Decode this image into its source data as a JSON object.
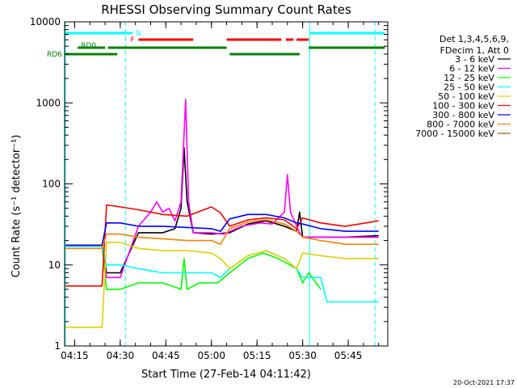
{
  "chart_data": {
    "type": "line",
    "title": "RHESSI Observing Summary Count Rates",
    "xlabel": "Start Time (27-Feb-14 04:11:42)",
    "ylabel": "Count Rate (s⁻¹ detector⁻¹)",
    "x_ticks": [
      "04:15",
      "04:30",
      "04:45",
      "05:00",
      "05:15",
      "05:30",
      "05:45"
    ],
    "x_tick_minutes": [
      15,
      30,
      45,
      60,
      75,
      90,
      105
    ],
    "xlim_minutes": [
      11.7,
      118
    ],
    "y_scale": "log",
    "ylim": [
      1,
      10000
    ],
    "y_ticks": [
      "1",
      "10",
      "100",
      "1000",
      "10000"
    ],
    "grid": false,
    "legend_position": "right",
    "legend_header": [
      "Det 1,3,4,5,6,9,",
      "FDecim 1, Att 0"
    ],
    "series": [
      {
        "name": "3 - 6 keV",
        "color": "#000000",
        "points": [
          [
            12,
            17.5
          ],
          [
            24,
            17.5
          ],
          [
            25.5,
            8
          ],
          [
            30,
            8
          ],
          [
            36,
            25
          ],
          [
            44,
            25
          ],
          [
            48,
            28
          ],
          [
            50,
            50
          ],
          [
            51,
            280
          ],
          [
            52,
            60
          ],
          [
            54,
            25
          ],
          [
            60,
            24
          ],
          [
            66,
            25
          ],
          [
            72,
            32
          ],
          [
            78,
            35
          ],
          [
            84,
            30
          ],
          [
            88,
            26
          ],
          [
            89,
            45
          ],
          [
            90,
            22
          ],
          [
            96,
            22
          ],
          [
            104,
            22
          ],
          [
            115,
            23
          ]
        ]
      },
      {
        "name": "6 - 12 keV",
        "color": "#ff00ff",
        "points": [
          [
            12,
            17
          ],
          [
            24,
            17
          ],
          [
            25.5,
            7
          ],
          [
            30,
            7
          ],
          [
            36,
            30
          ],
          [
            40,
            45
          ],
          [
            42,
            60
          ],
          [
            44,
            45
          ],
          [
            46,
            50
          ],
          [
            48,
            35
          ],
          [
            50,
            60
          ],
          [
            51.5,
            1100
          ],
          [
            52.5,
            60
          ],
          [
            54,
            25
          ],
          [
            60,
            25
          ],
          [
            64,
            24
          ],
          [
            70,
            30
          ],
          [
            76,
            33
          ],
          [
            80,
            32
          ],
          [
            84,
            45
          ],
          [
            85,
            130
          ],
          [
            86,
            45
          ],
          [
            89,
            25
          ],
          [
            90,
            22
          ],
          [
            100,
            22
          ],
          [
            115,
            22
          ]
        ]
      },
      {
        "name": "12 - 25 keV",
        "color": "#00ff00",
        "points": [
          [
            12,
            17
          ],
          [
            24,
            17
          ],
          [
            25.5,
            5
          ],
          [
            30,
            5
          ],
          [
            36,
            6
          ],
          [
            44,
            6
          ],
          [
            50,
            5
          ],
          [
            51,
            12
          ],
          [
            52,
            5
          ],
          [
            56,
            6
          ],
          [
            62,
            6
          ],
          [
            66,
            8
          ],
          [
            72,
            12
          ],
          [
            77,
            14
          ],
          [
            82,
            12
          ],
          [
            88,
            9
          ],
          [
            90,
            6
          ],
          [
            92,
            8
          ],
          [
            96,
            5
          ]
        ]
      },
      {
        "name": "25 - 50 keV",
        "color": "#00ffff",
        "points": [
          [
            12,
            17
          ],
          [
            24,
            17
          ],
          [
            25.5,
            10
          ],
          [
            30,
            10
          ],
          [
            36,
            9
          ],
          [
            44,
            8
          ],
          [
            52,
            8
          ],
          [
            60,
            8
          ],
          [
            63,
            7
          ],
          [
            66,
            9
          ],
          [
            72,
            13
          ],
          [
            78,
            15
          ],
          [
            84,
            12
          ],
          [
            88,
            9
          ],
          [
            90,
            7
          ],
          [
            96,
            7
          ],
          [
            98,
            3.5
          ],
          [
            115,
            3.5
          ]
        ]
      },
      {
        "name": "50 - 100 keV",
        "color": "#e0d000",
        "points": [
          [
            12,
            1.7
          ],
          [
            24,
            1.7
          ],
          [
            25.5,
            19
          ],
          [
            30,
            19
          ],
          [
            36,
            16
          ],
          [
            44,
            15
          ],
          [
            52,
            15
          ],
          [
            60,
            14
          ],
          [
            63,
            12
          ],
          [
            66,
            9
          ],
          [
            72,
            13
          ],
          [
            78,
            15
          ],
          [
            84,
            12
          ],
          [
            88,
            9
          ],
          [
            90,
            14
          ],
          [
            96,
            13
          ],
          [
            104,
            12
          ],
          [
            115,
            12
          ]
        ]
      },
      {
        "name": "100 - 300 keV",
        "color": "#ff0000",
        "points": [
          [
            12,
            5.5
          ],
          [
            24,
            5.5
          ],
          [
            25.5,
            55
          ],
          [
            30,
            52
          ],
          [
            36,
            48
          ],
          [
            44,
            42
          ],
          [
            52,
            40
          ],
          [
            60,
            52
          ],
          [
            63,
            44
          ],
          [
            66,
            30
          ],
          [
            72,
            36
          ],
          [
            78,
            38
          ],
          [
            84,
            36
          ],
          [
            88,
            28
          ],
          [
            90,
            38
          ],
          [
            96,
            33
          ],
          [
            104,
            30
          ],
          [
            115,
            35
          ]
        ]
      },
      {
        "name": "300 - 800 keV",
        "color": "#0000ff",
        "points": [
          [
            12,
            17.5
          ],
          [
            24,
            17.5
          ],
          [
            25.5,
            33
          ],
          [
            30,
            33
          ],
          [
            36,
            30
          ],
          [
            44,
            30
          ],
          [
            52,
            29
          ],
          [
            60,
            28
          ],
          [
            63,
            26
          ],
          [
            66,
            37
          ],
          [
            72,
            42
          ],
          [
            78,
            42
          ],
          [
            84,
            38
          ],
          [
            88,
            33
          ],
          [
            90,
            32
          ],
          [
            96,
            28
          ],
          [
            104,
            26
          ],
          [
            115,
            26
          ]
        ]
      },
      {
        "name": "800 - 7000 keV",
        "color": "#ff7f00",
        "points": [
          [
            12,
            16
          ],
          [
            24,
            16
          ],
          [
            25.5,
            24
          ],
          [
            30,
            24
          ],
          [
            36,
            22
          ],
          [
            44,
            21
          ],
          [
            52,
            20
          ],
          [
            60,
            20
          ],
          [
            63,
            18
          ],
          [
            66,
            28
          ],
          [
            72,
            34
          ],
          [
            78,
            36
          ],
          [
            84,
            32
          ],
          [
            88,
            26
          ],
          [
            90,
            22
          ],
          [
            96,
            20
          ],
          [
            104,
            18
          ],
          [
            115,
            18
          ]
        ]
      },
      {
        "name": "7000 - 15000 keV",
        "color": "#a05000",
        "points": []
      }
    ],
    "state_bars": [
      {
        "label": "N",
        "color": "#00ffff",
        "segments": [
          [
            12,
            34
          ],
          [
            92.5,
            117
          ]
        ]
      },
      {
        "label": "F",
        "color": "#ff0000",
        "segments": [
          [
            36,
            54
          ],
          [
            65,
            83
          ],
          [
            84.5,
            87
          ],
          [
            88,
            92
          ]
        ]
      },
      {
        "label": "RD0",
        "color": "#008000",
        "segments": [
          [
            16,
            25
          ],
          [
            26,
            65
          ],
          [
            92,
            117
          ]
        ]
      },
      {
        "label": "RD6",
        "color": "#008000",
        "segments": [
          [
            12,
            29
          ],
          [
            66,
            89
          ]
        ]
      }
    ],
    "vlines": [
      {
        "minute": 11.9,
        "color": "#00ffff",
        "style": "solid"
      },
      {
        "minute": 31.7,
        "color": "#00ffff",
        "style": "dashed"
      },
      {
        "minute": 92.3,
        "color": "#00ffff",
        "style": "solid"
      },
      {
        "minute": 113.8,
        "color": "#00ffff",
        "style": "dashed"
      }
    ]
  },
  "footer": {
    "date_stamp": "20-Oct-2021 17:37"
  }
}
